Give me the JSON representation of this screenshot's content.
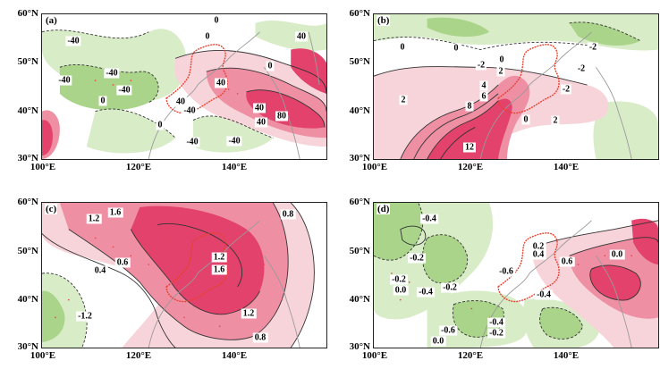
{
  "panels": [
    {
      "label": "(a)",
      "ylabels": [
        "60°N",
        "50°N",
        "40°N",
        "30°N"
      ],
      "xlabels": [
        "100°E",
        "120°E",
        "140°E"
      ],
      "contour_labels": [
        "0",
        "0",
        "40",
        "-40",
        "-40",
        "-40",
        "-40",
        "0",
        "40",
        "0",
        "40",
        "-40",
        "40",
        "80",
        "40",
        "0",
        "-40",
        "-40"
      ]
    },
    {
      "label": "(b)",
      "ylabels": [
        "60°N",
        "50°N",
        "40°N",
        "30°N"
      ],
      "xlabels": [
        "100°E",
        "120°E",
        "140°E"
      ],
      "contour_labels": [
        "0",
        "0",
        "0",
        "-2",
        "-2",
        "-2",
        "2",
        "-2",
        "4",
        "6",
        "2",
        "8",
        "0",
        "2",
        "12"
      ]
    },
    {
      "label": "(c)",
      "ylabels": [
        "60°N",
        "50°N",
        "40°N",
        "30°N"
      ],
      "xlabels": [
        "100°E",
        "120°E",
        "140°E"
      ],
      "contour_labels": [
        "1.6",
        "1.2",
        "0.8",
        "1.2",
        "1.6",
        "0.6",
        "0.4",
        "-1.2",
        "1.2",
        "0.8"
      ]
    },
    {
      "label": "(d)",
      "ylabels": [
        "60°N",
        "50°N",
        "40°N",
        "30°N"
      ],
      "xlabels": [
        "100°E",
        "120°E",
        "140°E"
      ],
      "contour_labels": [
        "-0.4",
        "-0.2",
        "0.2",
        "0.4",
        "0.0",
        "0.6",
        "-0.2",
        "-0.6",
        "0.0",
        "-0.4",
        "-0.2",
        "-0.4",
        "-0.4",
        "-0.6",
        "-0.2",
        "0.0"
      ]
    }
  ],
  "colors": {
    "positive_light": "#f7d3da",
    "positive_mid": "#ee8fa4",
    "positive_strong": "#e2426b",
    "negative_light": "#d9ecc8",
    "negative_mid": "#a9d48a",
    "boundary": "#e8412f",
    "coast": "#9a9a9a",
    "stipple": "#e05050"
  }
}
